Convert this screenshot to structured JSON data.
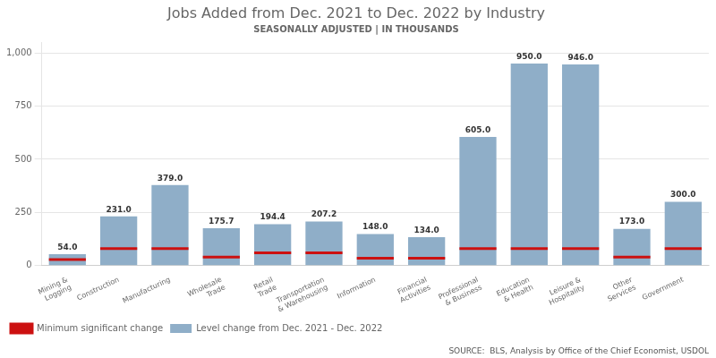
{
  "chart_data": {
    "type": "bar",
    "title": "Jobs Added from Dec. 2021 to Dec. 2022 by Industry",
    "subtitle": "SEASONALLY ADJUSTED | IN THOUSANDS",
    "categories": [
      "Mining &\nLogging",
      "Construction",
      "Manufacturing",
      "Wholesale\nTrade",
      "Retail\nTrade",
      "Transportation\n& Warehousing",
      "Information",
      "Financial\nActivities",
      "Professional\n& Business",
      "Education\n& Health",
      "Leisure &\nHospitality",
      "Other\nServices",
      "Government"
    ],
    "series": [
      {
        "name": "Level change from Dec. 2021 - Dec. 2022",
        "type": "bar",
        "color": "#8faec8",
        "values": [
          54.0,
          231.0,
          379.0,
          175.7,
          194.4,
          207.2,
          148.0,
          134.0,
          605.0,
          950.0,
          946.0,
          173.0,
          300.0
        ],
        "value_labels": [
          "54.0",
          "231.0",
          "379.0",
          "175.7",
          "194.4",
          "207.2",
          "148.0",
          "134.0",
          "605.0",
          "950.0",
          "946.0",
          "173.0",
          "300.0"
        ]
      },
      {
        "name": "Minimum significant change",
        "type": "line",
        "color": "#cc1111",
        "marker": "hline",
        "line_style": "none",
        "values": [
          28,
          80,
          80,
          40,
          60,
          60,
          35,
          35,
          80,
          80,
          80,
          40,
          80
        ]
      }
    ],
    "ylim": [
      0,
      1050
    ],
    "yticks": [
      0,
      250,
      500,
      750,
      1000
    ],
    "grid": true,
    "legend": "lower left",
    "data_labels": true,
    "annotations": [
      "SOURCE:  BLS, Analysis by Office of the Chief Economist, USDOL"
    ]
  }
}
